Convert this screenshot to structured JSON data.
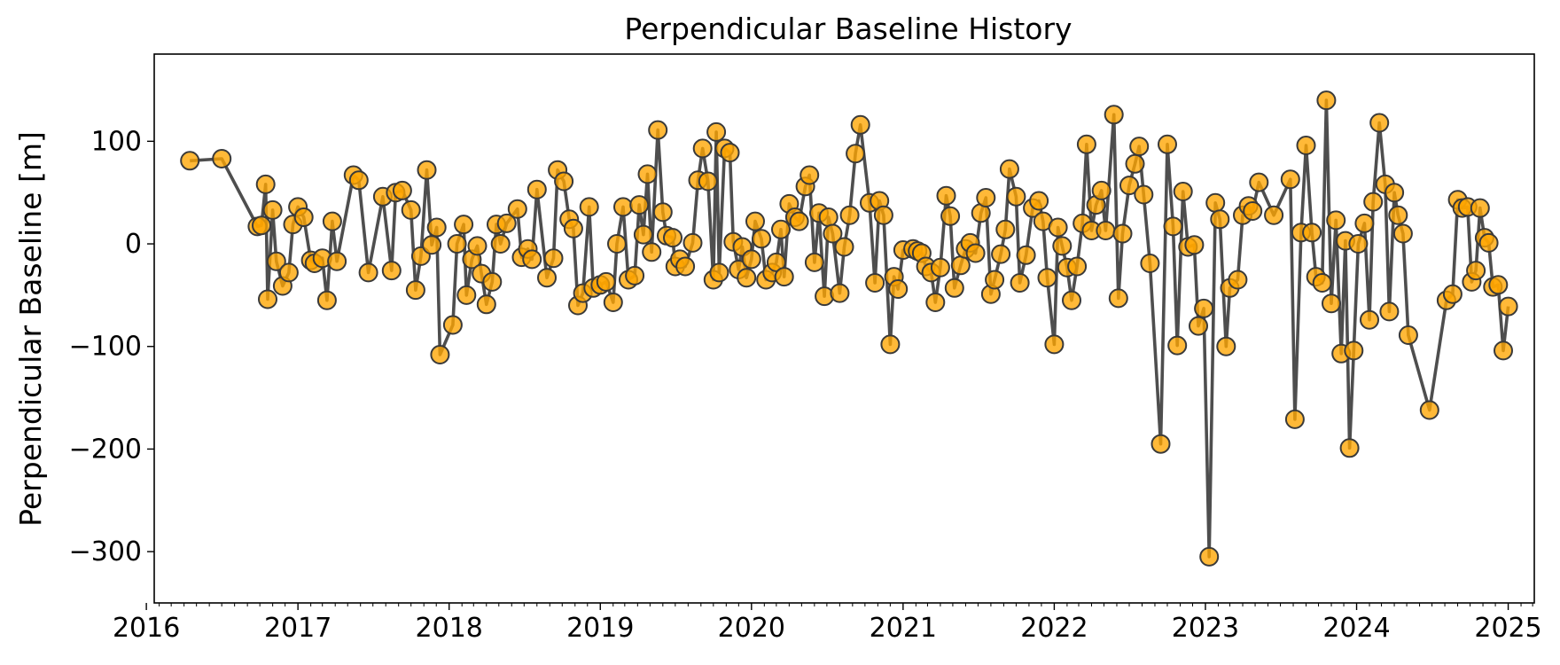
{
  "chart_data": {
    "type": "scatter",
    "title": "Perpendicular Baseline History",
    "xlabel": "",
    "ylabel": "Perpendicular Baseline [m]",
    "xlim": [
      "2016-01-20",
      "2025-03-05"
    ],
    "ylim": [
      -350,
      185
    ],
    "x_ticks": [
      "2016",
      "2017",
      "2018",
      "2019",
      "2020",
      "2021",
      "2022",
      "2023",
      "2024",
      "2025"
    ],
    "y_ticks": [
      100,
      0,
      -100,
      -200,
      -300
    ],
    "y_tick_labels": [
      "100",
      "0",
      "−100",
      "−200",
      "−300"
    ],
    "grid": false,
    "legend": false,
    "colors": {
      "marker_fill": "#ffa500",
      "marker_edge": "#3a3a3a",
      "line": "#454545"
    },
    "series": [
      {
        "points": [
          [
            "2016-04-15",
            81
          ],
          [
            "2016-07-01",
            83
          ],
          [
            "2016-09-25",
            17
          ],
          [
            "2016-10-05",
            18
          ],
          [
            "2016-10-15",
            58
          ],
          [
            "2016-10-20",
            -54
          ],
          [
            "2016-11-01",
            33
          ],
          [
            "2016-11-10",
            -17
          ],
          [
            "2016-11-25",
            -41
          ],
          [
            "2016-12-10",
            -28
          ],
          [
            "2016-12-20",
            19
          ],
          [
            "2017-01-01",
            36
          ],
          [
            "2017-01-15",
            26
          ],
          [
            "2017-02-01",
            -16
          ],
          [
            "2017-02-10",
            -19
          ],
          [
            "2017-03-01",
            -14
          ],
          [
            "2017-03-12",
            -55
          ],
          [
            "2017-03-25",
            22
          ],
          [
            "2017-04-05",
            -17
          ],
          [
            "2017-05-15",
            67
          ],
          [
            "2017-05-28",
            62
          ],
          [
            "2017-06-20",
            -28
          ],
          [
            "2017-07-25",
            46
          ],
          [
            "2017-08-15",
            -26
          ],
          [
            "2017-08-25",
            50
          ],
          [
            "2017-09-10",
            52
          ],
          [
            "2017-10-01",
            33
          ],
          [
            "2017-10-12",
            -45
          ],
          [
            "2017-10-25",
            -12
          ],
          [
            "2017-11-08",
            72
          ],
          [
            "2017-11-20",
            -1
          ],
          [
            "2017-12-02",
            16
          ],
          [
            "2017-12-10",
            -108
          ],
          [
            "2018-01-10",
            -79
          ],
          [
            "2018-01-20",
            0
          ],
          [
            "2018-02-05",
            19
          ],
          [
            "2018-02-12",
            -50
          ],
          [
            "2018-02-25",
            -15
          ],
          [
            "2018-03-10",
            -2
          ],
          [
            "2018-03-20",
            -29
          ],
          [
            "2018-04-01",
            -59
          ],
          [
            "2018-04-15",
            -37
          ],
          [
            "2018-04-25",
            19
          ],
          [
            "2018-05-05",
            0
          ],
          [
            "2018-05-20",
            20
          ],
          [
            "2018-06-15",
            34
          ],
          [
            "2018-06-25",
            -13
          ],
          [
            "2018-07-10",
            -5
          ],
          [
            "2018-07-20",
            -15
          ],
          [
            "2018-08-01",
            53
          ],
          [
            "2018-08-25",
            -33
          ],
          [
            "2018-09-10",
            -14
          ],
          [
            "2018-09-20",
            72
          ],
          [
            "2018-10-05",
            61
          ],
          [
            "2018-10-18",
            24
          ],
          [
            "2018-10-28",
            15
          ],
          [
            "2018-11-08",
            -60
          ],
          [
            "2018-11-20",
            -48
          ],
          [
            "2018-12-05",
            36
          ],
          [
            "2018-12-15",
            -43
          ],
          [
            "2019-01-01",
            -40
          ],
          [
            "2019-01-15",
            -37
          ],
          [
            "2019-02-01",
            -57
          ],
          [
            "2019-02-10",
            0
          ],
          [
            "2019-02-25",
            36
          ],
          [
            "2019-03-10",
            -35
          ],
          [
            "2019-03-25",
            -31
          ],
          [
            "2019-04-05",
            38
          ],
          [
            "2019-04-15",
            9
          ],
          [
            "2019-04-25",
            68
          ],
          [
            "2019-05-05",
            -8
          ],
          [
            "2019-05-20",
            111
          ],
          [
            "2019-06-01",
            31
          ],
          [
            "2019-06-10",
            8
          ],
          [
            "2019-06-25",
            6
          ],
          [
            "2019-07-01",
            -22
          ],
          [
            "2019-07-12",
            -15
          ],
          [
            "2019-07-25",
            -22
          ],
          [
            "2019-08-12",
            1
          ],
          [
            "2019-08-25",
            62
          ],
          [
            "2019-09-05",
            93
          ],
          [
            "2019-09-18",
            61
          ],
          [
            "2019-10-01",
            -35
          ],
          [
            "2019-10-08",
            109
          ],
          [
            "2019-10-15",
            -28
          ],
          [
            "2019-10-28",
            93
          ],
          [
            "2019-11-10",
            89
          ],
          [
            "2019-11-18",
            2
          ],
          [
            "2019-12-01",
            -25
          ],
          [
            "2019-12-10",
            -3
          ],
          [
            "2019-12-20",
            -33
          ],
          [
            "2020-01-01",
            -15
          ],
          [
            "2020-01-10",
            22
          ],
          [
            "2020-01-25",
            5
          ],
          [
            "2020-02-05",
            -35
          ],
          [
            "2020-02-20",
            -28
          ],
          [
            "2020-03-01",
            -18
          ],
          [
            "2020-03-12",
            14
          ],
          [
            "2020-03-20",
            -32
          ],
          [
            "2020-04-01",
            39
          ],
          [
            "2020-04-15",
            26
          ],
          [
            "2020-04-25",
            22
          ],
          [
            "2020-05-10",
            56
          ],
          [
            "2020-05-20",
            67
          ],
          [
            "2020-06-01",
            -18
          ],
          [
            "2020-06-12",
            30
          ],
          [
            "2020-06-25",
            -51
          ],
          [
            "2020-07-05",
            26
          ],
          [
            "2020-07-15",
            10
          ],
          [
            "2020-08-01",
            -48
          ],
          [
            "2020-08-12",
            -3
          ],
          [
            "2020-08-25",
            28
          ],
          [
            "2020-09-08",
            88
          ],
          [
            "2020-09-20",
            116
          ],
          [
            "2020-10-12",
            40
          ],
          [
            "2020-10-25",
            -38
          ],
          [
            "2020-11-05",
            42
          ],
          [
            "2020-11-15",
            28
          ],
          [
            "2020-12-01",
            -98
          ],
          [
            "2020-12-10",
            -32
          ],
          [
            "2020-12-20",
            -44
          ],
          [
            "2021-01-01",
            -6
          ],
          [
            "2021-01-25",
            -5
          ],
          [
            "2021-02-05",
            -7
          ],
          [
            "2021-02-15",
            -9
          ],
          [
            "2021-02-25",
            -22
          ],
          [
            "2021-03-10",
            -28
          ],
          [
            "2021-03-20",
            -57
          ],
          [
            "2021-04-01",
            -23
          ],
          [
            "2021-04-15",
            47
          ],
          [
            "2021-04-25",
            27
          ],
          [
            "2021-05-05",
            -43
          ],
          [
            "2021-05-20",
            -21
          ],
          [
            "2021-06-01",
            -5
          ],
          [
            "2021-06-12",
            1
          ],
          [
            "2021-06-25",
            -9
          ],
          [
            "2021-07-08",
            30
          ],
          [
            "2021-07-20",
            45
          ],
          [
            "2021-08-01",
            -49
          ],
          [
            "2021-08-10",
            -35
          ],
          [
            "2021-08-25",
            -10
          ],
          [
            "2021-09-05",
            14
          ],
          [
            "2021-09-15",
            73
          ],
          [
            "2021-10-01",
            46
          ],
          [
            "2021-10-10",
            -38
          ],
          [
            "2021-10-25",
            -11
          ],
          [
            "2021-11-10",
            35
          ],
          [
            "2021-11-25",
            42
          ],
          [
            "2021-12-05",
            22
          ],
          [
            "2021-12-15",
            -33
          ],
          [
            "2022-01-01",
            -98
          ],
          [
            "2022-01-10",
            16
          ],
          [
            "2022-01-20",
            -2
          ],
          [
            "2022-02-01",
            -23
          ],
          [
            "2022-02-12",
            -55
          ],
          [
            "2022-02-25",
            -22
          ],
          [
            "2022-03-10",
            20
          ],
          [
            "2022-03-20",
            97
          ],
          [
            "2022-04-01",
            13
          ],
          [
            "2022-04-12",
            38
          ],
          [
            "2022-04-25",
            52
          ],
          [
            "2022-05-05",
            13
          ],
          [
            "2022-05-25",
            126
          ],
          [
            "2022-06-05",
            -53
          ],
          [
            "2022-06-15",
            10
          ],
          [
            "2022-07-01",
            57
          ],
          [
            "2022-07-15",
            78
          ],
          [
            "2022-07-25",
            95
          ],
          [
            "2022-08-05",
            48
          ],
          [
            "2022-08-20",
            -19
          ],
          [
            "2022-09-15",
            -195
          ],
          [
            "2022-10-01",
            97
          ],
          [
            "2022-10-15",
            17
          ],
          [
            "2022-10-25",
            -99
          ],
          [
            "2022-11-08",
            51
          ],
          [
            "2022-11-20",
            -3
          ],
          [
            "2022-12-05",
            -1
          ],
          [
            "2022-12-15",
            -80
          ],
          [
            "2022-12-28",
            -63
          ],
          [
            "2023-01-10",
            -305
          ],
          [
            "2023-01-25",
            40
          ],
          [
            "2023-02-05",
            24
          ],
          [
            "2023-02-20",
            -100
          ],
          [
            "2023-03-01",
            -43
          ],
          [
            "2023-03-20",
            -35
          ],
          [
            "2023-04-01",
            28
          ],
          [
            "2023-04-15",
            37
          ],
          [
            "2023-04-25",
            32
          ],
          [
            "2023-05-10",
            60
          ],
          [
            "2023-06-15",
            28
          ],
          [
            "2023-07-25",
            63
          ],
          [
            "2023-08-05",
            -171
          ],
          [
            "2023-08-20",
            11
          ],
          [
            "2023-09-01",
            96
          ],
          [
            "2023-09-15",
            11
          ],
          [
            "2023-09-25",
            -32
          ],
          [
            "2023-10-10",
            -38
          ],
          [
            "2023-10-20",
            140
          ],
          [
            "2023-11-01",
            -58
          ],
          [
            "2023-11-12",
            23
          ],
          [
            "2023-11-25",
            -107
          ],
          [
            "2023-12-05",
            3
          ],
          [
            "2023-12-15",
            -199
          ],
          [
            "2023-12-25",
            -104
          ],
          [
            "2024-01-05",
            0
          ],
          [
            "2024-01-20",
            20
          ],
          [
            "2024-02-01",
            -74
          ],
          [
            "2024-02-10",
            41
          ],
          [
            "2024-02-25",
            118
          ],
          [
            "2024-03-10",
            58
          ],
          [
            "2024-03-20",
            -66
          ],
          [
            "2024-04-01",
            50
          ],
          [
            "2024-04-10",
            28
          ],
          [
            "2024-04-22",
            10
          ],
          [
            "2024-05-05",
            -89
          ],
          [
            "2024-06-25",
            -162
          ],
          [
            "2024-08-05",
            -55
          ],
          [
            "2024-08-20",
            -49
          ],
          [
            "2024-09-01",
            43
          ],
          [
            "2024-09-12",
            35
          ],
          [
            "2024-09-25",
            36
          ],
          [
            "2024-10-05",
            -37
          ],
          [
            "2024-10-15",
            -26
          ],
          [
            "2024-10-25",
            35
          ],
          [
            "2024-11-05",
            6
          ],
          [
            "2024-11-15",
            1
          ],
          [
            "2024-11-25",
            -42
          ],
          [
            "2024-12-08",
            -40
          ],
          [
            "2024-12-20",
            -104
          ],
          [
            "2025-01-01",
            -61
          ]
        ]
      }
    ]
  }
}
